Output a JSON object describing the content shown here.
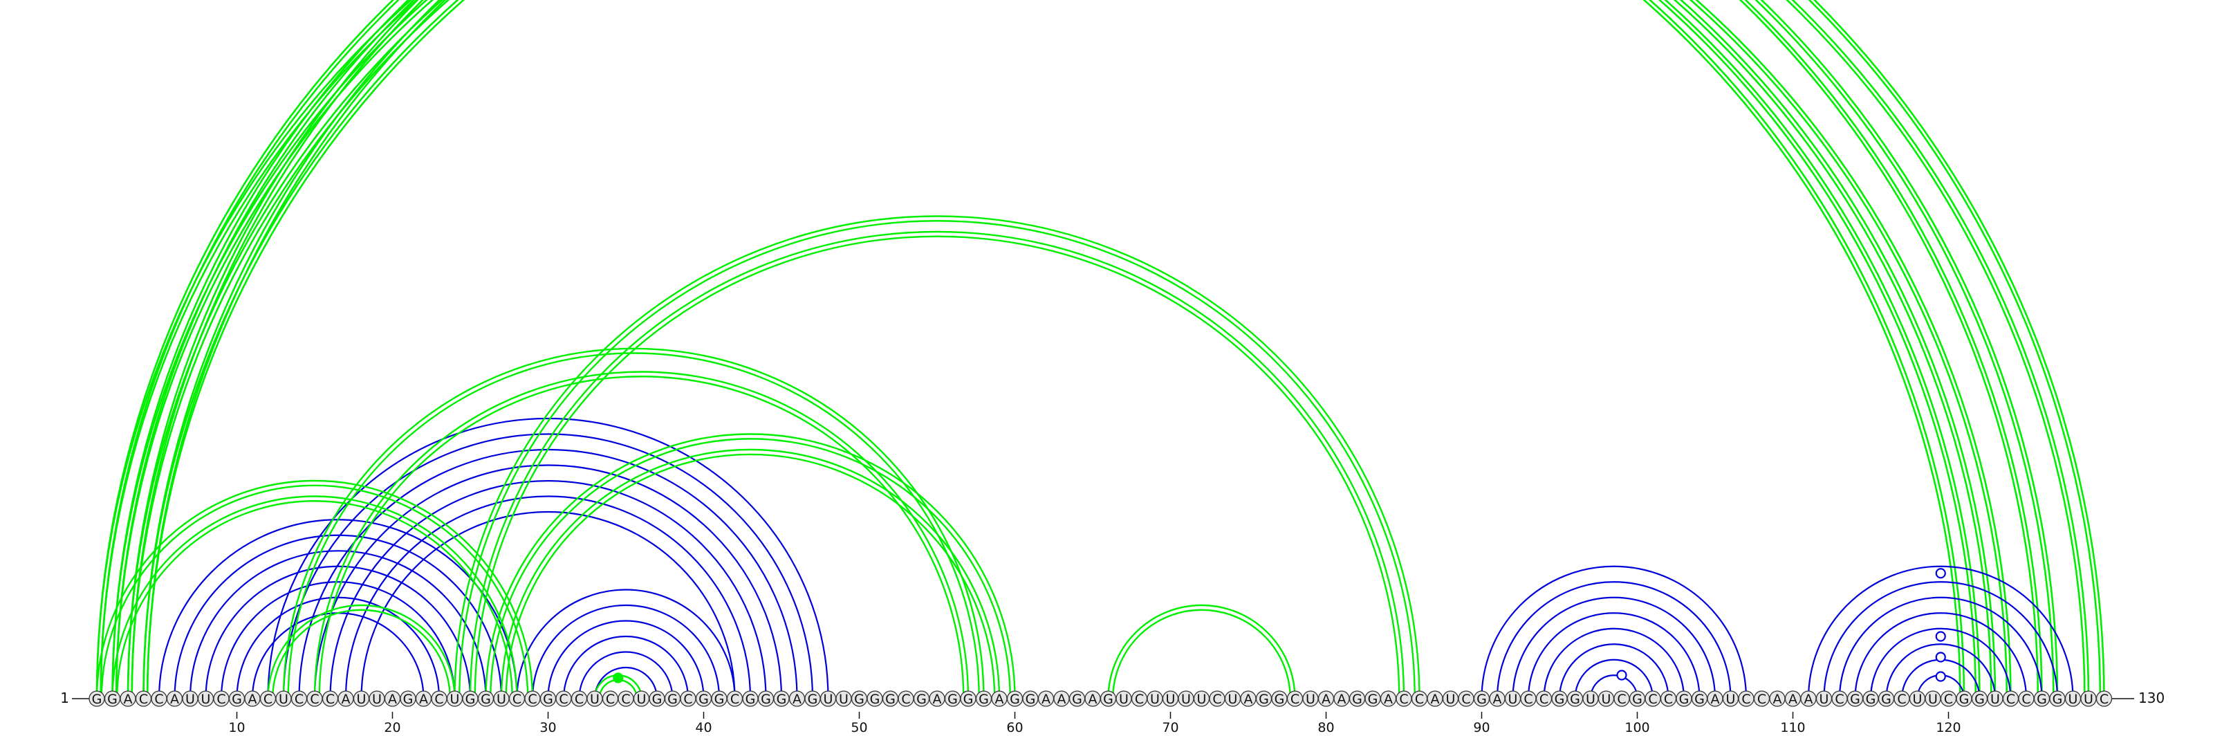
{
  "sequence": "GGACCAUUCGACUCCCAUUAGACUGGUCCGCCUCCUGGCGGCGGGAGUUGGGCGAGGGAGGAAGAGUCUUUUCUAGGCUAAGGACCAUCGAUCCGGUUCGCCGGAUCCAAAUCGGGCUUCGGUCCGGUUC",
  "length_labels": {
    "start": "1",
    "end": "130"
  },
  "ticks": [
    {
      "pos": 10,
      "label": "10"
    },
    {
      "pos": 20,
      "label": "20"
    },
    {
      "pos": 30,
      "label": "30"
    },
    {
      "pos": 40,
      "label": "40"
    },
    {
      "pos": 50,
      "label": "50"
    },
    {
      "pos": 60,
      "label": "60"
    },
    {
      "pos": 70,
      "label": "70"
    },
    {
      "pos": 80,
      "label": "80"
    },
    {
      "pos": 90,
      "label": "90"
    },
    {
      "pos": 100,
      "label": "100"
    },
    {
      "pos": 110,
      "label": "110"
    },
    {
      "pos": 120,
      "label": "120"
    }
  ],
  "colors": {
    "green": "#00ee00",
    "blue": "#0000dd",
    "text": "#111111"
  },
  "chart_data": {
    "type": "arc",
    "top_green_arcs": [
      {
        "i": 1,
        "j": 121
      },
      {
        "i": 2,
        "j": 122
      },
      {
        "i": 3,
        "j": 123
      },
      {
        "i": 4,
        "j": 124
      },
      {
        "i": 1,
        "j": 126
      },
      {
        "i": 2,
        "j": 127
      },
      {
        "i": 3,
        "j": 130
      },
      {
        "i": 4,
        "j": 129
      }
    ],
    "top_green_markers": [
      {
        "pos": 65.5,
        "filled": false
      }
    ],
    "top_blue_stems": [
      {
        "i": 5,
        "j": 28,
        "n": 7
      },
      {
        "i": 12,
        "j": 48,
        "n": 7
      },
      {
        "i": 28,
        "j": 42,
        "n": 6
      },
      {
        "i": 90,
        "j": 107,
        "n": 8
      },
      {
        "i": 111,
        "j": 128,
        "n": 8
      }
    ],
    "top_blue_markers": [
      {
        "pos": 99,
        "filled": false
      },
      {
        "pos": 119.5,
        "filled": false
      },
      {
        "pos": 119.5,
        "filled": false
      },
      {
        "pos": 119.5,
        "filled": false
      }
    ],
    "bottom_green_arcs": [
      {
        "i": 1,
        "j": 29
      },
      {
        "i": 2,
        "j": 28
      },
      {
        "i": 12,
        "j": 24
      },
      {
        "i": 13,
        "j": 58
      },
      {
        "i": 15,
        "j": 57
      },
      {
        "i": 24,
        "j": 86
      },
      {
        "i": 25,
        "j": 85
      },
      {
        "i": 26,
        "j": 60
      },
      {
        "i": 27,
        "j": 59
      },
      {
        "i": 66,
        "j": 78
      },
      {
        "i": 33,
        "j": 36
      }
    ],
    "bottom_green_markers": [
      {
        "pos": 34.5,
        "filled": true
      }
    ]
  }
}
